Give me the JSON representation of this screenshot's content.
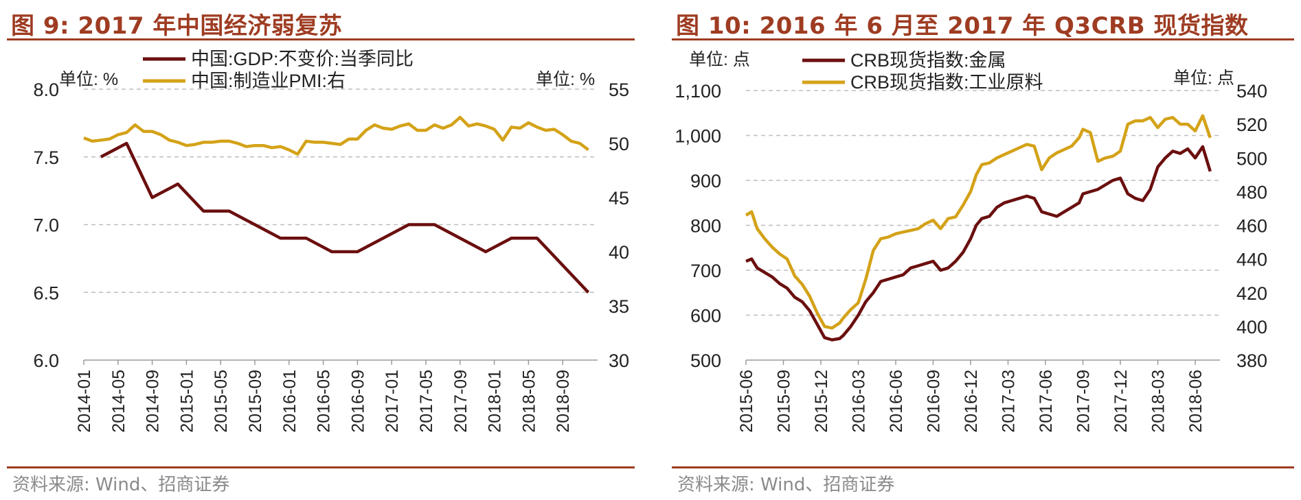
{
  "panels": [
    {
      "title": "图 9:  2017 年中国经济弱复苏",
      "source": "资料来源:  Wind、招商证券"
    },
    {
      "title": "图 10:  2016 年 6 月至 2017 年 Q3CRB 现货指数",
      "source": "资料来源:  Wind、招商证券"
    }
  ],
  "chart_data": [
    {
      "type": "line",
      "unit_left": "单位:  %",
      "unit_right": "单位:  %",
      "ylim_left": [
        6.0,
        8.0
      ],
      "yticks_left": [
        "8.0",
        "7.5",
        "7.0",
        "6.5",
        "6.0"
      ],
      "ylim_right": [
        30,
        55
      ],
      "yticks_right": [
        "55",
        "50",
        "45",
        "40",
        "35",
        "30"
      ],
      "xticks": [
        "2014-01",
        "2014-05",
        "2014-09",
        "2015-01",
        "2015-05",
        "2015-09",
        "2016-01",
        "2016-05",
        "2016-09",
        "2017-01",
        "2017-05",
        "2017-09",
        "2018-01",
        "2018-05",
        "2018-09"
      ],
      "grid": "horizontal dashed",
      "legend": "top-left",
      "series": [
        {
          "name": "中国:GDP:不变价:当季同比",
          "axis": "left",
          "color": "#6b0f0f",
          "x": [
            "2014-03",
            "2014-06",
            "2014-09",
            "2014-12",
            "2015-03",
            "2015-06",
            "2015-09",
            "2015-12",
            "2016-03",
            "2016-06",
            "2016-09",
            "2016-12",
            "2017-03",
            "2017-06",
            "2017-09",
            "2017-12",
            "2018-03",
            "2018-06",
            "2018-09",
            "2018-12"
          ],
          "values": [
            7.5,
            7.6,
            7.2,
            7.3,
            7.1,
            7.1,
            7.0,
            6.9,
            6.9,
            6.8,
            6.8,
            6.9,
            7.0,
            7.0,
            6.9,
            6.8,
            6.9,
            6.9,
            6.7,
            6.5
          ]
        },
        {
          "name": "中国:制造业PMI:右",
          "axis": "right",
          "color": "#d4a218",
          "x": [
            "2014-01",
            "2014-02",
            "2014-03",
            "2014-04",
            "2014-05",
            "2014-06",
            "2014-07",
            "2014-08",
            "2014-09",
            "2014-10",
            "2014-11",
            "2014-12",
            "2015-01",
            "2015-02",
            "2015-03",
            "2015-04",
            "2015-05",
            "2015-06",
            "2015-07",
            "2015-08",
            "2015-09",
            "2015-10",
            "2015-11",
            "2015-12",
            "2016-01",
            "2016-02",
            "2016-03",
            "2016-04",
            "2016-05",
            "2016-06",
            "2016-07",
            "2016-08",
            "2016-09",
            "2016-10",
            "2016-11",
            "2016-12",
            "2017-01",
            "2017-02",
            "2017-03",
            "2017-04",
            "2017-05",
            "2017-06",
            "2017-07",
            "2017-08",
            "2017-09",
            "2017-10",
            "2017-11",
            "2017-12",
            "2018-01",
            "2018-02",
            "2018-03",
            "2018-04",
            "2018-05",
            "2018-06",
            "2018-07",
            "2018-08",
            "2018-09",
            "2018-10",
            "2018-11",
            "2018-12"
          ],
          "values": [
            50.5,
            50.2,
            50.3,
            50.4,
            50.8,
            51.0,
            51.7,
            51.1,
            51.1,
            50.8,
            50.3,
            50.1,
            49.8,
            49.9,
            50.1,
            50.1,
            50.2,
            50.2,
            50.0,
            49.7,
            49.8,
            49.8,
            49.6,
            49.7,
            49.4,
            49.0,
            50.2,
            50.1,
            50.1,
            50.0,
            49.9,
            50.4,
            50.4,
            51.2,
            51.7,
            51.4,
            51.3,
            51.6,
            51.8,
            51.2,
            51.2,
            51.7,
            51.4,
            51.7,
            52.4,
            51.6,
            51.8,
            51.6,
            51.3,
            50.3,
            51.5,
            51.4,
            51.9,
            51.5,
            51.2,
            51.3,
            50.8,
            50.2,
            50.0,
            49.4
          ]
        }
      ]
    },
    {
      "type": "line",
      "unit_left": "单位:  点",
      "unit_right": "单位:  点",
      "ylim_left": [
        500,
        1100
      ],
      "yticks_left": [
        "1,100",
        "1,000",
        "900",
        "800",
        "700",
        "600",
        "500"
      ],
      "ylim_right": [
        380,
        540
      ],
      "yticks_right": [
        "540",
        "520",
        "500",
        "480",
        "460",
        "440",
        "420",
        "400",
        "380"
      ],
      "xticks": [
        "2015-06",
        "2015-09",
        "2015-12",
        "2016-03",
        "2016-06",
        "2016-09",
        "2016-12",
        "2017-03",
        "2017-06",
        "2017-09",
        "2017-12",
        "2018-03",
        "2018-06"
      ],
      "grid": "horizontal dashed",
      "legend": "top-left",
      "series": [
        {
          "name": "CRB现货指数:金属",
          "axis": "left",
          "color": "#6b0f0f",
          "x": [
            0,
            0.15,
            0.3,
            0.5,
            0.7,
            0.9,
            1.1,
            1.3,
            1.5,
            1.7,
            1.9,
            2.1,
            2.3,
            2.5,
            2.6,
            2.8,
            3.0,
            3.2,
            3.4,
            3.6,
            3.8,
            4.0,
            4.2,
            4.4,
            4.6,
            4.8,
            5.0,
            5.2,
            5.4,
            5.6,
            5.8,
            6.0,
            6.15,
            6.3,
            6.5,
            6.7,
            6.9,
            7.1,
            7.3,
            7.5,
            7.7,
            7.9,
            8.1,
            8.3,
            8.5,
            8.7,
            8.9,
            9.0,
            9.2,
            9.4,
            9.6,
            9.8,
            10.0,
            10.2,
            10.4,
            10.6,
            10.8,
            11.0,
            11.2,
            11.4,
            11.6,
            11.8,
            12.0,
            12.2,
            12.4
          ],
          "values": [
            720,
            725,
            705,
            695,
            685,
            670,
            660,
            640,
            630,
            610,
            580,
            550,
            545,
            548,
            555,
            575,
            600,
            630,
            650,
            675,
            680,
            685,
            690,
            705,
            710,
            715,
            720,
            700,
            705,
            720,
            740,
            770,
            800,
            815,
            820,
            840,
            850,
            855,
            860,
            865,
            860,
            830,
            825,
            820,
            830,
            840,
            850,
            870,
            875,
            880,
            890,
            900,
            905,
            870,
            860,
            855,
            880,
            930,
            950,
            965,
            960,
            970,
            950,
            975,
            920
          ]
        },
        {
          "name": "CRB现货指数:工业原料",
          "axis": "right",
          "color": "#d4a218",
          "x": [
            0,
            0.15,
            0.3,
            0.5,
            0.7,
            0.9,
            1.1,
            1.3,
            1.5,
            1.7,
            1.9,
            2.1,
            2.3,
            2.5,
            2.6,
            2.8,
            3.0,
            3.2,
            3.4,
            3.6,
            3.8,
            4.0,
            4.2,
            4.4,
            4.6,
            4.8,
            5.0,
            5.2,
            5.4,
            5.6,
            5.8,
            6.0,
            6.15,
            6.3,
            6.5,
            6.7,
            6.9,
            7.1,
            7.3,
            7.5,
            7.7,
            7.9,
            8.1,
            8.3,
            8.5,
            8.7,
            8.9,
            9.0,
            9.2,
            9.4,
            9.6,
            9.8,
            10.0,
            10.2,
            10.4,
            10.6,
            10.8,
            11.0,
            11.2,
            11.4,
            11.6,
            11.8,
            12.0,
            12.2,
            12.4
          ],
          "values": [
            466,
            468,
            458,
            452,
            447,
            443,
            440,
            430,
            425,
            418,
            408,
            400,
            399,
            402,
            405,
            410,
            414,
            428,
            445,
            452,
            453,
            455,
            456,
            457,
            458,
            461,
            463,
            458,
            464,
            465,
            472,
            480,
            490,
            496,
            497,
            500,
            502,
            504,
            506,
            508,
            507,
            493,
            500,
            503,
            505,
            507,
            512,
            517,
            515,
            498,
            500,
            501,
            504,
            520,
            522,
            522,
            524,
            518,
            523,
            524,
            520,
            520,
            516,
            525,
            512
          ]
        }
      ]
    }
  ]
}
